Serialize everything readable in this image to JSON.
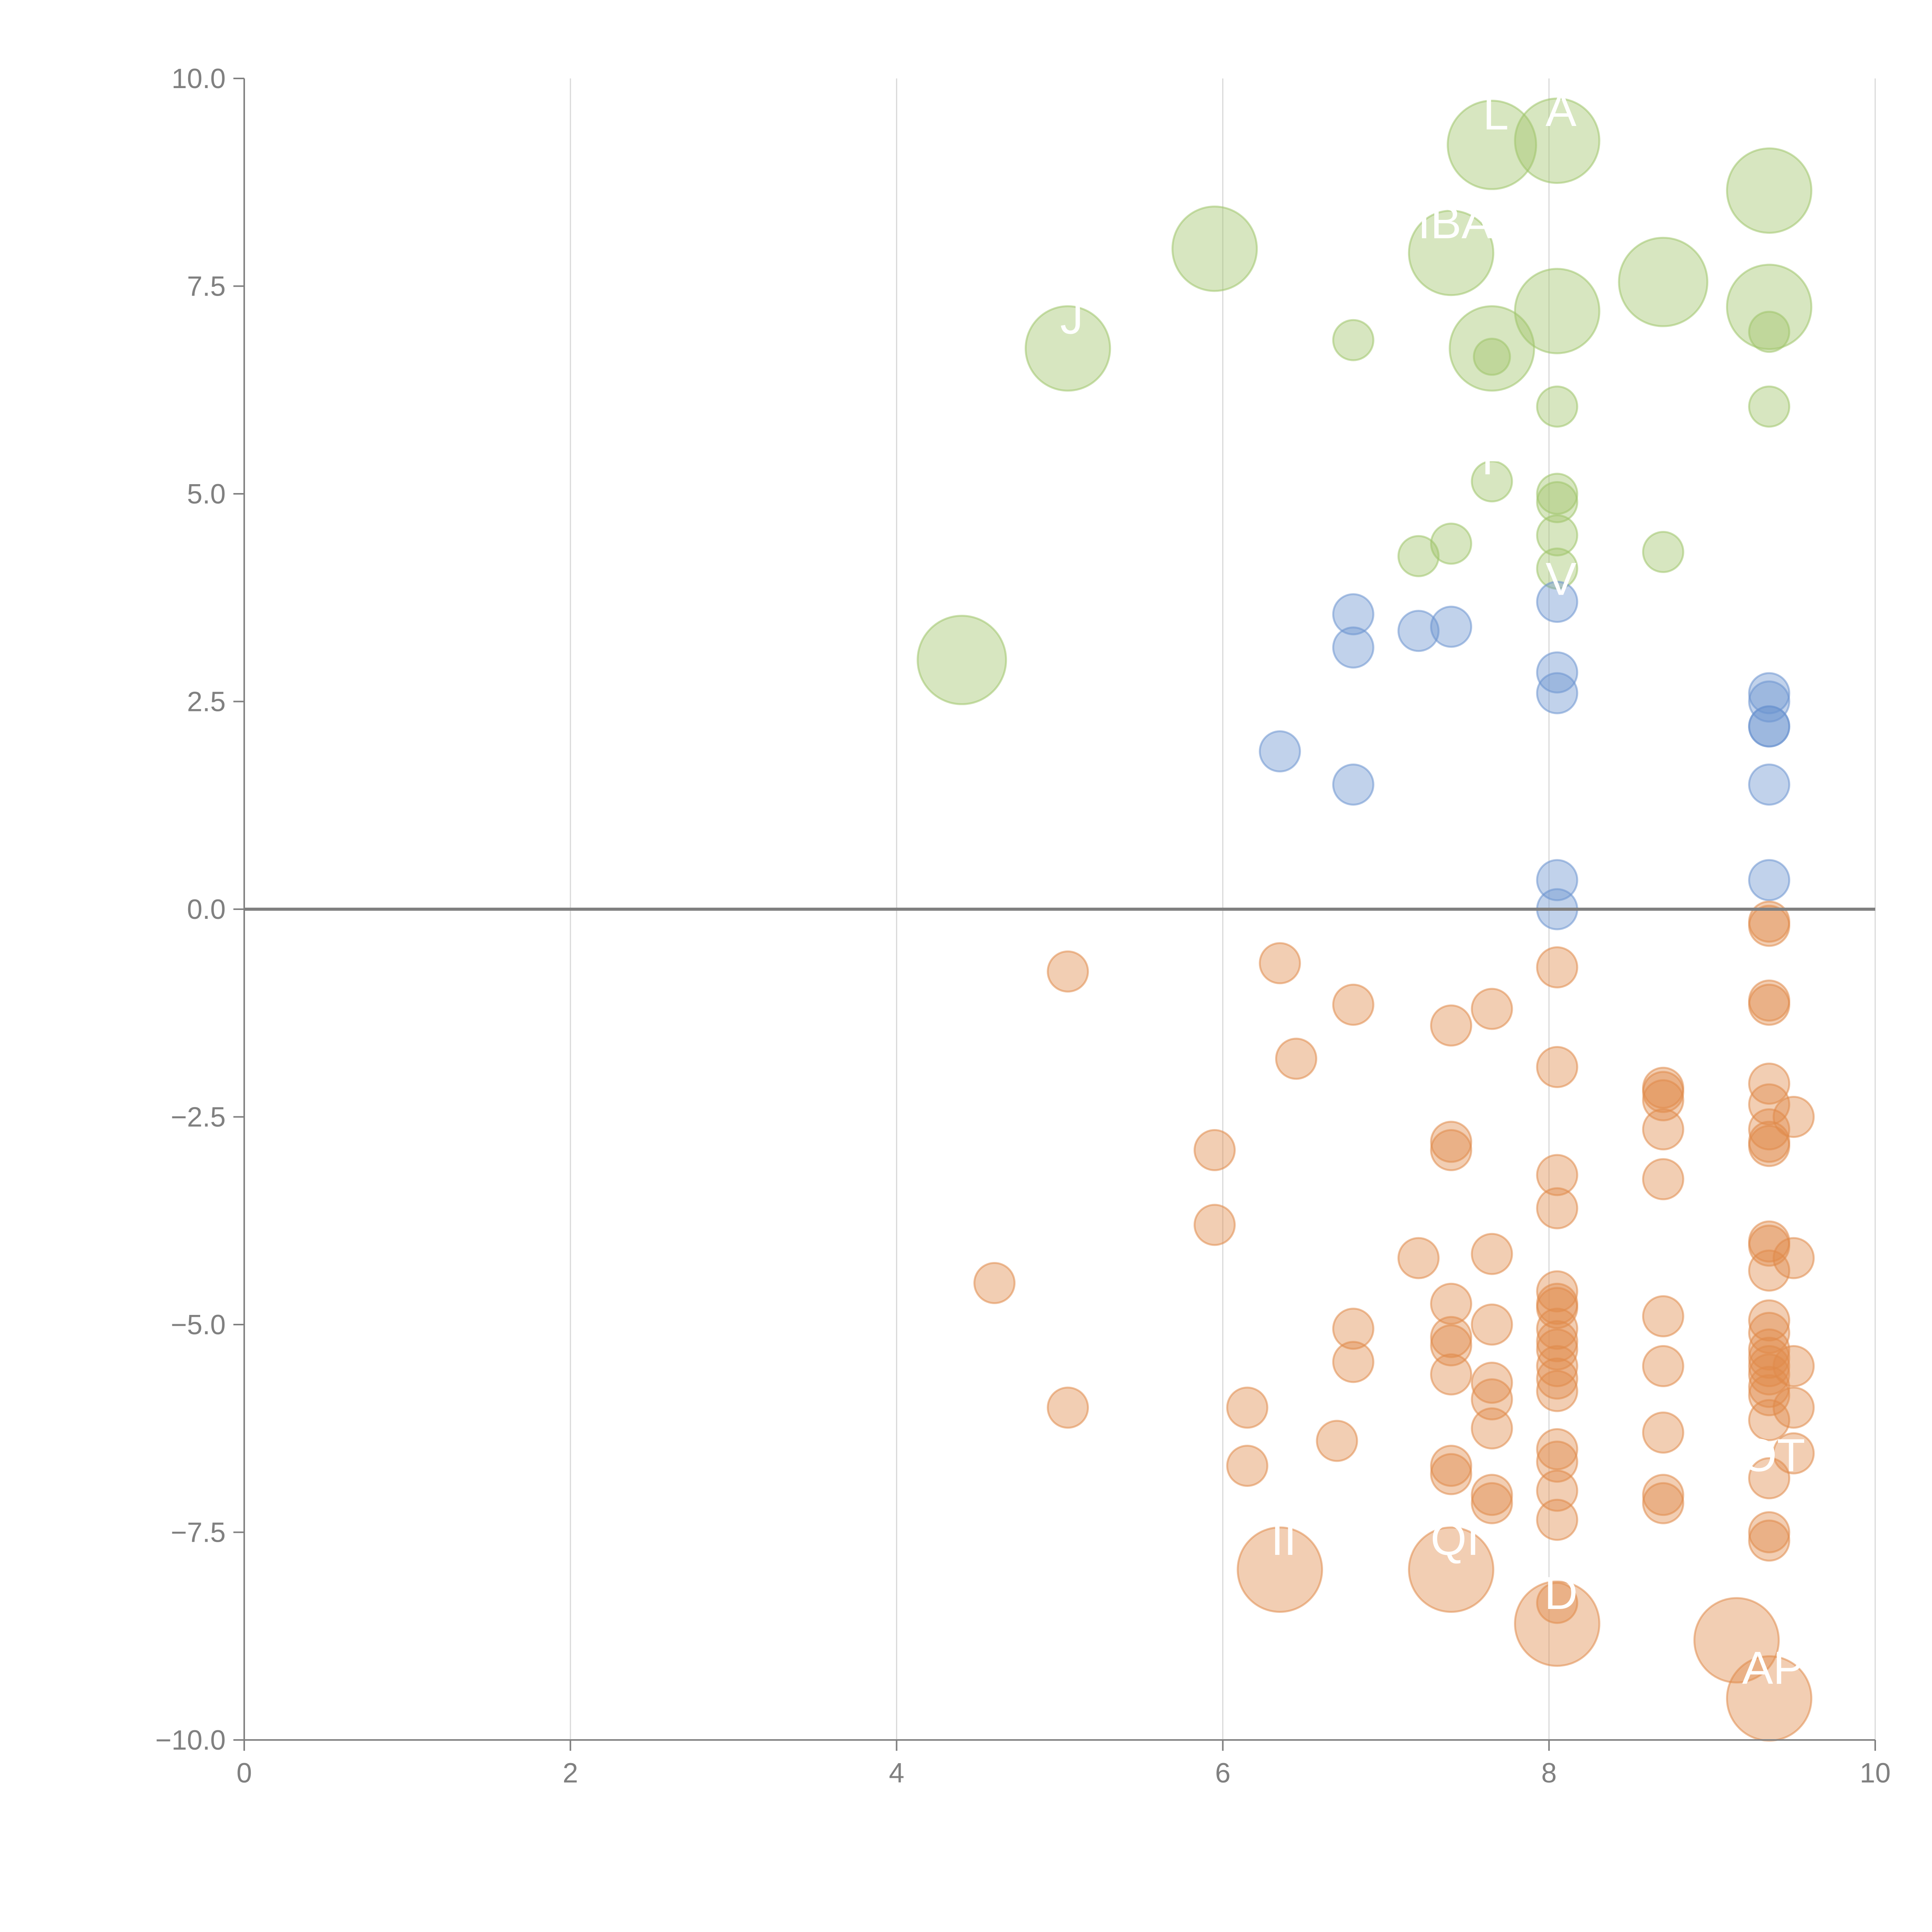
{
  "chart_data": {
    "type": "scatter",
    "title": "",
    "xlabel": "",
    "ylabel": "",
    "xlim": [
      0,
      10
    ],
    "ylim": [
      -10,
      10
    ],
    "xticks": [
      "0",
      "2",
      "4",
      "6",
      "8",
      "10"
    ],
    "yticks": [
      "10.0",
      "7.5",
      "5.0",
      "2.5",
      "0.0",
      "−2.5",
      "−5.0",
      "−7.5",
      "−10.0"
    ],
    "xtick_values": [
      0,
      2,
      4,
      6,
      8,
      10
    ],
    "ytick_values": [
      10,
      7.5,
      5,
      2.5,
      0,
      -2.5,
      -5,
      -7.5,
      -10
    ],
    "vertical_grid": true,
    "horizontal_grid": false,
    "zero_line": true,
    "colors": {
      "green": "#9fc46a",
      "blue": "#6b93cf",
      "orange": "#e08a4b",
      "axis": "#808080",
      "grid": "#d9d9d9"
    },
    "series": [
      {
        "color_key": "green",
        "points": [
          {
            "x": 4.4,
            "y": 3.0,
            "s": 2.2
          },
          {
            "x": 5.05,
            "y": 6.75,
            "s": 2.1,
            "label": "J"
          },
          {
            "x": 5.95,
            "y": 7.95,
            "s": 2.1
          },
          {
            "x": 6.8,
            "y": 6.85,
            "s": 1.0
          },
          {
            "x": 7.2,
            "y": 4.25,
            "s": 1.0
          },
          {
            "x": 7.4,
            "y": 4.4,
            "s": 1.0
          },
          {
            "x": 7.4,
            "y": 7.9,
            "s": 2.1,
            "label": "IBA"
          },
          {
            "x": 7.65,
            "y": 9.2,
            "s": 2.2,
            "label": "L"
          },
          {
            "x": 7.65,
            "y": 6.75,
            "s": 2.1
          },
          {
            "x": 7.65,
            "y": 6.65,
            "s": 0.9
          },
          {
            "x": 7.65,
            "y": 5.15,
            "s": 1.0,
            "label": "F"
          },
          {
            "x": 8.05,
            "y": 9.25,
            "s": 2.1,
            "label": "A"
          },
          {
            "x": 8.05,
            "y": 7.2,
            "s": 2.1
          },
          {
            "x": 8.05,
            "y": 6.05,
            "s": 1.0
          },
          {
            "x": 8.05,
            "y": 5.0,
            "s": 1.0
          },
          {
            "x": 8.05,
            "y": 4.9,
            "s": 1.0
          },
          {
            "x": 8.05,
            "y": 4.5,
            "s": 1.0
          },
          {
            "x": 8.05,
            "y": 4.1,
            "s": 1.0
          },
          {
            "x": 8.7,
            "y": 7.55,
            "s": 2.2
          },
          {
            "x": 8.7,
            "y": 4.3,
            "s": 1.0
          },
          {
            "x": 9.35,
            "y": 8.65,
            "s": 2.1
          },
          {
            "x": 9.35,
            "y": 7.25,
            "s": 2.1
          },
          {
            "x": 9.35,
            "y": 6.95,
            "s": 1.0
          },
          {
            "x": 9.35,
            "y": 6.05,
            "s": 1.0
          }
        ]
      },
      {
        "color_key": "blue",
        "points": [
          {
            "x": 6.35,
            "y": 1.9,
            "s": 1.0
          },
          {
            "x": 6.8,
            "y": 3.55,
            "s": 1.0
          },
          {
            "x": 6.8,
            "y": 3.15,
            "s": 1.0
          },
          {
            "x": 6.8,
            "y": 1.5,
            "s": 1.0
          },
          {
            "x": 7.2,
            "y": 3.35,
            "s": 1.0
          },
          {
            "x": 7.4,
            "y": 3.4,
            "s": 1.0
          },
          {
            "x": 8.05,
            "y": 3.7,
            "s": 1.0,
            "label": "V"
          },
          {
            "x": 8.05,
            "y": 2.85,
            "s": 1.0
          },
          {
            "x": 8.05,
            "y": 2.6,
            "s": 1.0
          },
          {
            "x": 8.05,
            "y": 0.35,
            "s": 1.0
          },
          {
            "x": 8.05,
            "y": 0.0,
            "s": 1.0
          },
          {
            "x": 9.35,
            "y": 2.6,
            "s": 1.0
          },
          {
            "x": 9.35,
            "y": 2.5,
            "s": 1.0
          },
          {
            "x": 9.35,
            "y": 2.2,
            "s": 1.0
          },
          {
            "x": 9.35,
            "y": 2.2,
            "s": 1.0
          },
          {
            "x": 9.35,
            "y": 1.5,
            "s": 1.0
          },
          {
            "x": 9.35,
            "y": 0.35,
            "s": 1.0
          }
        ]
      },
      {
        "color_key": "orange",
        "points": [
          {
            "x": 4.6,
            "y": -4.5,
            "s": 1.0
          },
          {
            "x": 5.05,
            "y": -0.75,
            "s": 1.0
          },
          {
            "x": 5.05,
            "y": -6.0,
            "s": 1.0
          },
          {
            "x": 5.95,
            "y": -2.9,
            "s": 1.0
          },
          {
            "x": 5.95,
            "y": -3.8,
            "s": 1.0
          },
          {
            "x": 6.15,
            "y": -6.0,
            "s": 1.0
          },
          {
            "x": 6.15,
            "y": -6.7,
            "s": 1.0
          },
          {
            "x": 6.35,
            "y": -0.65,
            "s": 1.0
          },
          {
            "x": 6.35,
            "y": -7.95,
            "s": 2.1,
            "label": "II"
          },
          {
            "x": 6.45,
            "y": -1.8,
            "s": 1.0
          },
          {
            "x": 6.7,
            "y": -6.4,
            "s": 1.0
          },
          {
            "x": 6.8,
            "y": -1.15,
            "s": 1.0
          },
          {
            "x": 6.8,
            "y": -5.05,
            "s": 1.0
          },
          {
            "x": 6.8,
            "y": -5.45,
            "s": 1.0
          },
          {
            "x": 7.2,
            "y": -4.2,
            "s": 1.0
          },
          {
            "x": 7.4,
            "y": -1.4,
            "s": 1.0
          },
          {
            "x": 7.4,
            "y": -2.8,
            "s": 1.0
          },
          {
            "x": 7.4,
            "y": -2.9,
            "s": 1.0
          },
          {
            "x": 7.4,
            "y": -4.75,
            "s": 1.0
          },
          {
            "x": 7.4,
            "y": -5.15,
            "s": 1.0
          },
          {
            "x": 7.4,
            "y": -5.25,
            "s": 1.0
          },
          {
            "x": 7.4,
            "y": -5.6,
            "s": 1.0
          },
          {
            "x": 7.4,
            "y": -6.7,
            "s": 1.0
          },
          {
            "x": 7.4,
            "y": -6.8,
            "s": 1.0
          },
          {
            "x": 7.4,
            "y": -7.95,
            "s": 2.1,
            "label": "QI"
          },
          {
            "x": 7.65,
            "y": -1.2,
            "s": 1.0
          },
          {
            "x": 7.65,
            "y": -4.15,
            "s": 1.0
          },
          {
            "x": 7.65,
            "y": -5.0,
            "s": 1.0
          },
          {
            "x": 7.65,
            "y": -5.7,
            "s": 1.0
          },
          {
            "x": 7.65,
            "y": -5.9,
            "s": 1.0
          },
          {
            "x": 7.65,
            "y": -6.25,
            "s": 1.0
          },
          {
            "x": 7.65,
            "y": -7.05,
            "s": 1.0
          },
          {
            "x": 7.65,
            "y": -7.15,
            "s": 1.0
          },
          {
            "x": 8.05,
            "y": -0.7,
            "s": 1.0
          },
          {
            "x": 8.05,
            "y": -1.9,
            "s": 1.0
          },
          {
            "x": 8.05,
            "y": -3.2,
            "s": 1.0
          },
          {
            "x": 8.05,
            "y": -3.6,
            "s": 1.0
          },
          {
            "x": 8.05,
            "y": -4.6,
            "s": 1.0
          },
          {
            "x": 8.05,
            "y": -4.75,
            "s": 1.0
          },
          {
            "x": 8.05,
            "y": -4.8,
            "s": 1.0
          },
          {
            "x": 8.05,
            "y": -5.05,
            "s": 1.0
          },
          {
            "x": 8.05,
            "y": -5.2,
            "s": 1.0
          },
          {
            "x": 8.05,
            "y": -5.3,
            "s": 1.0
          },
          {
            "x": 8.05,
            "y": -5.5,
            "s": 1.0
          },
          {
            "x": 8.05,
            "y": -5.65,
            "s": 1.0
          },
          {
            "x": 8.05,
            "y": -5.8,
            "s": 1.0
          },
          {
            "x": 8.05,
            "y": -6.5,
            "s": 1.0
          },
          {
            "x": 8.05,
            "y": -6.65,
            "s": 1.0
          },
          {
            "x": 8.05,
            "y": -7.0,
            "s": 1.0
          },
          {
            "x": 8.05,
            "y": -7.35,
            "s": 1.0
          },
          {
            "x": 8.05,
            "y": -8.35,
            "s": 1.0
          },
          {
            "x": 8.05,
            "y": -8.6,
            "s": 2.1,
            "label": "D"
          },
          {
            "x": 8.7,
            "y": -2.15,
            "s": 1.0
          },
          {
            "x": 8.7,
            "y": -2.2,
            "s": 1.0
          },
          {
            "x": 8.7,
            "y": -2.3,
            "s": 1.0
          },
          {
            "x": 8.7,
            "y": -2.65,
            "s": 1.0
          },
          {
            "x": 8.7,
            "y": -3.25,
            "s": 1.0
          },
          {
            "x": 8.7,
            "y": -4.9,
            "s": 1.0
          },
          {
            "x": 8.7,
            "y": -5.5,
            "s": 1.0
          },
          {
            "x": 8.7,
            "y": -6.3,
            "s": 1.0
          },
          {
            "x": 8.7,
            "y": -7.05,
            "s": 1.0
          },
          {
            "x": 8.7,
            "y": -7.15,
            "s": 1.0
          },
          {
            "x": 9.15,
            "y": -8.8,
            "s": 2.1
          },
          {
            "x": 9.35,
            "y": -0.15,
            "s": 1.0
          },
          {
            "x": 9.35,
            "y": -0.2,
            "s": 1.0
          },
          {
            "x": 9.35,
            "y": -1.1,
            "s": 1.0
          },
          {
            "x": 9.35,
            "y": -1.15,
            "s": 1.0
          },
          {
            "x": 9.35,
            "y": -2.1,
            "s": 1.0
          },
          {
            "x": 9.35,
            "y": -2.35,
            "s": 1.0
          },
          {
            "x": 9.35,
            "y": -2.65,
            "s": 1.0
          },
          {
            "x": 9.35,
            "y": -2.8,
            "s": 1.0
          },
          {
            "x": 9.35,
            "y": -2.85,
            "s": 1.0
          },
          {
            "x": 9.35,
            "y": -4.0,
            "s": 1.0
          },
          {
            "x": 9.35,
            "y": -4.05,
            "s": 1.0
          },
          {
            "x": 9.35,
            "y": -4.35,
            "s": 1.0
          },
          {
            "x": 9.35,
            "y": -4.95,
            "s": 1.0
          },
          {
            "x": 9.35,
            "y": -5.1,
            "s": 1.0
          },
          {
            "x": 9.35,
            "y": -5.3,
            "s": 1.0
          },
          {
            "x": 9.35,
            "y": -5.4,
            "s": 1.0
          },
          {
            "x": 9.35,
            "y": -5.5,
            "s": 1.0
          },
          {
            "x": 9.35,
            "y": -5.6,
            "s": 1.0
          },
          {
            "x": 9.35,
            "y": -5.75,
            "s": 1.0
          },
          {
            "x": 9.35,
            "y": -5.85,
            "s": 1.0
          },
          {
            "x": 9.35,
            "y": -6.15,
            "s": 1.0
          },
          {
            "x": 9.35,
            "y": -6.85,
            "s": 1.0,
            "label": "OT"
          },
          {
            "x": 9.35,
            "y": -7.5,
            "s": 1.0
          },
          {
            "x": 9.35,
            "y": -7.6,
            "s": 1.0
          },
          {
            "x": 9.35,
            "y": -9.5,
            "s": 2.1,
            "label": "AP"
          },
          {
            "x": 9.5,
            "y": -2.5,
            "s": 1.0
          },
          {
            "x": 9.5,
            "y": -4.2,
            "s": 1.0
          },
          {
            "x": 9.5,
            "y": -5.5,
            "s": 1.0
          },
          {
            "x": 9.5,
            "y": -6.0,
            "s": 1.0
          },
          {
            "x": 9.5,
            "y": -6.55,
            "s": 1.0
          }
        ]
      }
    ]
  }
}
